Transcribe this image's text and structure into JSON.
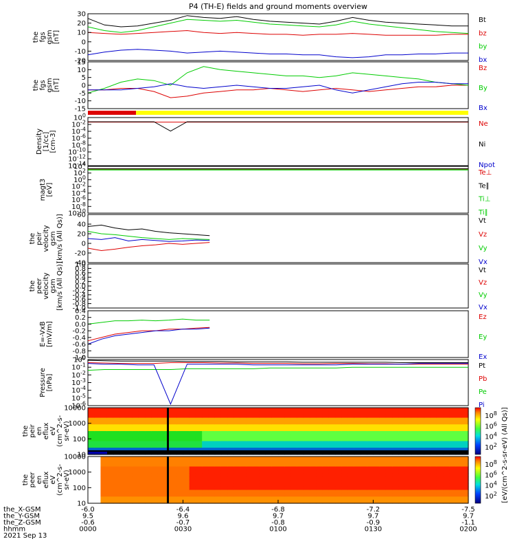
{
  "title": "P4 (TH-E) fields and ground moments overview",
  "colors": {
    "black": "#000000",
    "red": "#dd0000",
    "green": "#00cc00",
    "blue": "#0000cc",
    "yellow": "#ffff00"
  },
  "chart_data": [
    {
      "type": "line",
      "ylabel": [
        "the",
        "fgs",
        "gsm",
        "[nT]"
      ],
      "ylim": [
        -20,
        30
      ],
      "yticks": [
        "30",
        "20",
        "10",
        "0",
        "-10",
        "-20"
      ],
      "series": [
        {
          "name": "Bt",
          "color": "#000000",
          "values": [
            25,
            18,
            16,
            17,
            20,
            23,
            28,
            26,
            25,
            27,
            24,
            22,
            21,
            20,
            19,
            22,
            26,
            23,
            21,
            20,
            19,
            18,
            17,
            17
          ]
        },
        {
          "name": "bz",
          "color": "#dd0000",
          "values": [
            10,
            9,
            8,
            9,
            10,
            11,
            12,
            10,
            9,
            10,
            9,
            8,
            8,
            7,
            8,
            8,
            9,
            8,
            7,
            7,
            7,
            7,
            8,
            8
          ]
        },
        {
          "name": "by",
          "color": "#00cc00",
          "values": [
            16,
            12,
            10,
            12,
            16,
            20,
            24,
            23,
            22,
            23,
            21,
            19,
            18,
            17,
            16,
            18,
            22,
            19,
            17,
            15,
            13,
            11,
            10,
            9
          ]
        },
        {
          "name": "bx",
          "color": "#0000cc",
          "values": [
            -14,
            -11,
            -9,
            -8,
            -9,
            -10,
            -12,
            -11,
            -10,
            -11,
            -12,
            -13,
            -13,
            -14,
            -14,
            -16,
            -17,
            -16,
            -14,
            -14,
            -13,
            -13,
            -12,
            -12
          ]
        }
      ]
    },
    {
      "type": "line",
      "ylabel": [
        "the",
        "fgs",
        "gsm",
        "[nT]"
      ],
      "ylim": [
        -15,
        15
      ],
      "yticks": [
        "15",
        "10",
        "5",
        "0",
        "-5",
        "-10",
        "-15"
      ],
      "series": [
        {
          "name": "Bz",
          "color": "#dd0000",
          "values": [
            -3,
            -3,
            -2,
            -2,
            -4,
            -8,
            -7,
            -5,
            -4,
            -3,
            -3,
            -2,
            -3,
            -4,
            -3,
            -2,
            -3,
            -4,
            -3,
            -2,
            -1,
            -1,
            0,
            0
          ]
        },
        {
          "name": "By",
          "color": "#00cc00",
          "values": [
            -5,
            -2,
            2,
            4,
            3,
            0,
            8,
            12,
            10,
            9,
            8,
            7,
            6,
            6,
            5,
            6,
            8,
            7,
            6,
            5,
            4,
            2,
            1,
            0
          ]
        },
        {
          "name": "Bx",
          "color": "#0000cc",
          "values": [
            -3,
            -3,
            -3,
            -2,
            -1,
            1,
            -1,
            -2,
            -1,
            0,
            -1,
            -2,
            -2,
            -1,
            0,
            -3,
            -5,
            -3,
            -1,
            1,
            2,
            2,
            1,
            1
          ]
        }
      ]
    },
    {
      "type": "line",
      "ylog": true,
      "ylabel": [
        "Density",
        "[1/cc]",
        "[cm-3]"
      ],
      "ylim": [
        -14,
        2
      ],
      "yticks": [
        "10^0",
        "10^-2",
        "10^-4",
        "10^-6",
        "10^-8",
        "10^-10",
        "10^-12",
        "10^-14"
      ],
      "series": [
        {
          "name": "Ne",
          "color": "#dd0000",
          "values": [
            0.5,
            0.5,
            0.5,
            0.5,
            0.5,
            0.5,
            0.5,
            0.5,
            0.5,
            0.5,
            0.5,
            0.5,
            0.5,
            0.5,
            0.5,
            0.5,
            0.5,
            0.5,
            0.5,
            0.5,
            0.5,
            0.5,
            0.5,
            0.5
          ]
        },
        {
          "name": "Ni",
          "color": "#000000",
          "values": [
            0.6,
            0.6,
            0.6,
            0.6,
            0.6,
            -2.5,
            0.6,
            0.6,
            0.6,
            0.6,
            0.6,
            0.6,
            0.6,
            0.6,
            0.6,
            0.6,
            0.6,
            0.6,
            0.6,
            0.6,
            0.6,
            0.6,
            0.6,
            0.6
          ]
        },
        {
          "name": "Npot",
          "color": "#0000cc",
          "values": []
        }
      ]
    },
    {
      "type": "line",
      "ylog": true,
      "ylabel": [
        "magt3",
        "[eV]"
      ],
      "ylim": [
        -10,
        4
      ],
      "yticks": [
        "10^4",
        "10^2",
        "10^0",
        "10^-2",
        "10^-4",
        "10^-6",
        "10^-8",
        "10^-10"
      ],
      "series": [
        {
          "name": "Te⊥",
          "color": "#dd0000",
          "values": [
            3.2,
            3.2,
            3.2,
            3.2,
            3.2,
            3.2,
            3.2,
            3.2,
            3.2,
            3.2,
            3.2,
            3.2,
            3.2,
            3.2,
            3.2,
            3.2,
            3.2,
            3.2,
            3.2,
            3.2,
            3.2,
            3.2,
            3.2,
            3.2
          ]
        },
        {
          "name": "Te∥",
          "color": "#000000",
          "values": [
            3.3,
            3.3,
            3.3,
            3.3,
            3.3,
            3.3,
            3.3,
            3.3,
            3.3,
            3.3,
            3.3,
            3.3,
            3.3,
            3.3,
            3.3,
            3.3,
            3.3,
            3.3,
            3.3,
            3.3,
            3.3,
            3.3,
            3.3,
            3.3
          ]
        },
        {
          "name": "Ti⊥",
          "color": "#00cc00",
          "values": [
            3.0,
            3.0,
            3.0,
            3.0,
            3.0,
            3.0,
            3.0,
            3.0,
            3.0,
            3.0,
            3.0,
            3.0,
            3.0,
            3.0,
            3.0,
            3.0,
            3.0,
            3.0,
            3.0,
            3.0,
            3.0,
            3.0,
            3.0,
            3.0
          ]
        },
        {
          "name": "Ti∥",
          "color": "#00cc00",
          "values": [
            2.9,
            2.9,
            2.9,
            2.9,
            2.9,
            2.9,
            2.9,
            2.9,
            2.9,
            2.9,
            2.9,
            2.9,
            2.9,
            2.9,
            2.9,
            2.9,
            2.9,
            2.9,
            2.9,
            2.9,
            2.9,
            2.9,
            2.9,
            2.9
          ]
        }
      ]
    },
    {
      "type": "line",
      "ylabel": [
        "the",
        "peir",
        "velocity",
        "gsm",
        "[km/s (All Qs)]"
      ],
      "ylim": [
        -40,
        60
      ],
      "yticks": [
        "60",
        "40",
        "20",
        "0",
        "-20",
        "-40"
      ],
      "xfrac": 0.32,
      "series": [
        {
          "name": "Vt",
          "color": "#000000",
          "values": [
            35,
            38,
            32,
            28,
            30,
            25,
            22,
            20,
            18,
            16
          ]
        },
        {
          "name": "Vz",
          "color": "#dd0000",
          "values": [
            -10,
            -15,
            -12,
            -8,
            -5,
            -3,
            0,
            -2,
            0,
            2
          ]
        },
        {
          "name": "Vy",
          "color": "#00cc00",
          "values": [
            25,
            20,
            18,
            15,
            12,
            10,
            8,
            10,
            9,
            8
          ]
        },
        {
          "name": "Vx",
          "color": "#0000cc",
          "values": [
            10,
            8,
            12,
            5,
            8,
            6,
            4,
            5,
            7,
            6
          ]
        }
      ]
    },
    {
      "type": "line",
      "ylabel": [
        "the",
        "peer",
        "velocity",
        "gsm",
        "[km/s (All Qs)]"
      ],
      "ylim": [
        -1,
        1
      ],
      "yticks": [
        "1.0",
        "0.8",
        "0.6",
        "0.4",
        "0.2",
        "0.0",
        "-0.2",
        "-0.4",
        "-0.6",
        "-0.8",
        "-1.0"
      ],
      "series": [
        {
          "name": "Vt",
          "color": "#000000",
          "values": []
        },
        {
          "name": "Vz",
          "color": "#dd0000",
          "values": []
        },
        {
          "name": "Vy",
          "color": "#00cc00",
          "values": []
        },
        {
          "name": "Vx",
          "color": "#0000cc",
          "values": []
        }
      ]
    },
    {
      "type": "line",
      "ylabel": [
        "E=-VxB",
        "[mV/m]"
      ],
      "ylim": [
        -1,
        0.4
      ],
      "yticks": [
        "0.4",
        "0.2",
        "0.0",
        "-0.2",
        "-0.4",
        "-0.6",
        "-0.8",
        "-1.0"
      ],
      "xfrac": 0.32,
      "series": [
        {
          "name": "Ez",
          "color": "#dd0000",
          "values": [
            -0.5,
            -0.4,
            -0.3,
            -0.25,
            -0.2,
            -0.2,
            -0.15,
            -0.15,
            -0.12,
            -0.1
          ]
        },
        {
          "name": "Ey",
          "color": "#00cc00",
          "values": [
            0.0,
            0.05,
            0.1,
            0.1,
            0.12,
            0.1,
            0.12,
            0.15,
            0.12,
            0.12
          ]
        },
        {
          "name": "Ex",
          "color": "#0000cc",
          "values": [
            -0.6,
            -0.45,
            -0.35,
            -0.3,
            -0.25,
            -0.2,
            -0.2,
            -0.15,
            -0.15,
            -0.12
          ]
        }
      ]
    },
    {
      "type": "line",
      "ylog": true,
      "ylabel": [
        "Pressure",
        "[nPa]"
      ],
      "ylim": [
        -6,
        0
      ],
      "yticks": [
        "10^0",
        "10^-1",
        "10^-2",
        "10^-3",
        "10^-4",
        "10^-5",
        "10^-6"
      ],
      "series": [
        {
          "name": "Pt",
          "color": "#000000",
          "values": [
            -0.1,
            -0.15,
            -0.2,
            -0.2,
            -0.2,
            -0.2,
            -0.25,
            -0.25,
            -0.25,
            -0.3,
            -0.3,
            -0.3,
            -0.3,
            -0.35,
            -0.35,
            -0.35,
            -0.35,
            -0.35,
            -0.35,
            -0.4,
            -0.4,
            -0.4,
            -0.4,
            -0.4
          ]
        },
        {
          "name": "Pb",
          "color": "#dd0000",
          "values": [
            -0.4,
            -0.45,
            -0.5,
            -0.5,
            -0.5,
            -0.4,
            -0.4,
            -0.4,
            -0.45,
            -0.45,
            -0.5,
            -0.5,
            -0.5,
            -0.55,
            -0.55,
            -0.5,
            -0.5,
            -0.55,
            -0.55,
            -0.6,
            -0.6,
            -0.6,
            -0.6,
            -0.6
          ]
        },
        {
          "name": "Pe",
          "color": "#00cc00",
          "values": [
            -1.4,
            -1.3,
            -1.3,
            -1.3,
            -1.3,
            -1.3,
            -1.2,
            -1.2,
            -1.2,
            -1.2,
            -1.2,
            -1.1,
            -1.1,
            -1.1,
            -1.1,
            -1.1,
            -1.0,
            -1.0,
            -1.0,
            -1.0,
            -1.0,
            -1.0,
            -1.0,
            -1.0
          ]
        },
        {
          "name": "Pi",
          "color": "#0000cc",
          "values": [
            -0.5,
            -0.6,
            -0.6,
            -0.7,
            -0.7,
            -5.8,
            -0.6,
            -0.6,
            -0.6,
            -0.6,
            -0.7,
            -0.7,
            -0.7,
            -0.7,
            -0.7,
            -0.7,
            -0.6,
            -0.6,
            -0.6,
            -0.6,
            -0.5,
            -0.5,
            -0.5,
            -0.5
          ]
        }
      ]
    },
    {
      "type": "heatmap",
      "ylabel": [
        "the",
        "peir",
        "en",
        "eflux",
        "eV",
        "(cm^2-s-",
        "sr-eV)"
      ],
      "yticks": [
        "10000",
        "1000",
        "100",
        "10"
      ]
    },
    {
      "type": "heatmap",
      "ylabel": [
        "the",
        "peer",
        "en",
        "eflux",
        "eV",
        "(cm^2-s-",
        "sr-eV)"
      ],
      "yticks": [
        "10000",
        "1000",
        "100",
        "10"
      ]
    }
  ],
  "colorbar": {
    "ticks": [
      "10^8",
      "10^6",
      "10^4",
      "10^2"
    ],
    "label": "[eV/(cm^2-s-sr-eV) (All Qs)]"
  },
  "xaxis": {
    "rows": [
      {
        "label": "the_X-GSM",
        "values": [
          "-6.0",
          "-6.4",
          "-6.8",
          "-7.2",
          "-7.5"
        ]
      },
      {
        "label": "the_Y-GSM",
        "values": [
          "9.5",
          "9.6",
          "9.7",
          "9.7",
          "9.7"
        ]
      },
      {
        "label": "the_Z-GSM",
        "values": [
          "-0.6",
          "-0.7",
          "-0.8",
          "-0.9",
          "-1.1"
        ]
      },
      {
        "label": "hhmm",
        "values": [
          "0000",
          "0030",
          "0100",
          "0130",
          "0200"
        ]
      }
    ],
    "date": "2021 Sep 13"
  }
}
